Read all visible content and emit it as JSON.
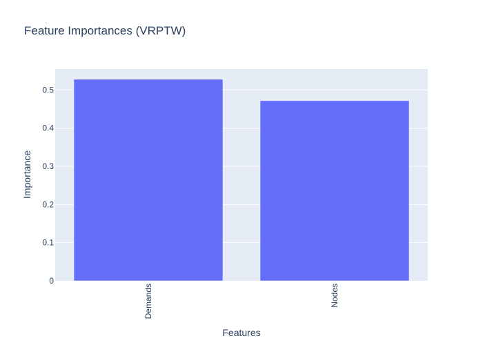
{
  "chart_data": {
    "type": "bar",
    "title": "Feature Importances (VRPTW)",
    "xlabel": "Features",
    "ylabel": "Importance",
    "categories": [
      "Demands",
      "Nodes"
    ],
    "values": [
      0.528,
      0.472
    ],
    "ylim": [
      0,
      0.555
    ],
    "yticks": [
      0,
      0.1,
      0.2,
      0.3,
      0.4,
      0.5
    ],
    "ytick_labels": [
      "0",
      "0.1",
      "0.2",
      "0.3",
      "0.4",
      "0.5"
    ],
    "grid": true,
    "colors": {
      "bar": "#636efa",
      "plot_bg": "#e5ecf6",
      "grid": "#ffffff",
      "text": "#2a3f5f"
    }
  }
}
